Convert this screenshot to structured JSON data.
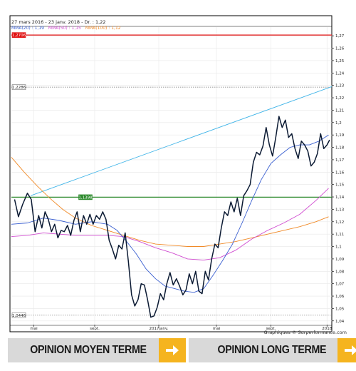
{
  "chart_data": {
    "type": "line",
    "header": "27 mars 2016 - 23 janv. 2018 - Dr. : 1,22",
    "legend": [
      {
        "text": "MMA(20) : 1,19",
        "color": "#3a5fd0"
      },
      {
        "text": "MMA(50) : 1,15",
        "color": "#d04cd0"
      },
      {
        "text": "MMA(100) : 1,12",
        "color": "#f08a28"
      }
    ],
    "ylim": [
      1.037,
      1.277
    ],
    "yticks": [
      1.04,
      1.05,
      1.06,
      1.07,
      1.08,
      1.09,
      1.1,
      1.11,
      1.12,
      1.13,
      1.14,
      1.15,
      1.16,
      1.17,
      1.18,
      1.19,
      1.2,
      1.21,
      1.22,
      1.23,
      1.24,
      1.25,
      1.26,
      1.27
    ],
    "ytick_labels": [
      "1,04",
      "1,05",
      "1,06",
      "1,07",
      "1,08",
      "1,09",
      "1,1",
      "1,11",
      "1,12",
      "1,13",
      "1,14",
      "1,15",
      "1,16",
      "1,17",
      "1,18",
      "1,19",
      "1,2",
      "1,21",
      "1,22",
      "1,23",
      "1,24",
      "1,25",
      "1,26",
      "1,27"
    ],
    "xlim": [
      0,
      100
    ],
    "xticks": [
      {
        "x": 7,
        "label": "mai"
      },
      {
        "x": 26,
        "label": "sept."
      },
      {
        "x": 46,
        "label": "2017janv."
      },
      {
        "x": 64,
        "label": "mai"
      },
      {
        "x": 81,
        "label": "sept."
      },
      {
        "x": 98.5,
        "label": "2018"
      }
    ],
    "hlines": [
      {
        "value": 1.2706,
        "label": "1,2706",
        "color": "#e01010",
        "style": "solid"
      },
      {
        "value": 1.2286,
        "label": "1,2286",
        "color": "#777777",
        "style": "dotted"
      },
      {
        "value": 1.1398,
        "label": "1,1398",
        "color": "#2e8b2e",
        "style": "solid",
        "label_box": "green"
      },
      {
        "value": 1.0446,
        "label": "1,0446",
        "color": "#777777",
        "style": "dotted"
      }
    ],
    "trendline": {
      "color": "#3fb4e8",
      "from": [
        6,
        1.141
      ],
      "to": [
        100,
        1.229
      ]
    },
    "series": [
      {
        "key": "price",
        "color": "#0b1a33",
        "x": [
          1,
          2.2,
          3.5,
          5,
          6.2,
          7.4,
          8.5,
          9.5,
          10.5,
          11.5,
          12.5,
          13.5,
          14.5,
          15.5,
          16.5,
          17.5,
          18.5,
          19.5,
          20.5,
          21.5,
          22.5,
          23.5,
          24.5,
          25.5,
          26.5,
          27.5,
          28.5,
          29.5,
          30.5,
          31.5,
          32.5,
          33.5,
          34.5,
          35.5,
          36.5,
          37.5,
          38.5,
          39.5,
          40.5,
          41.5,
          42.5,
          43.5,
          44.5,
          45.5,
          46.5,
          47.5,
          48.5,
          49.5,
          50.5,
          51.5,
          52.5,
          53.5,
          54.5,
          55.5,
          56.5,
          57.5,
          58.5,
          59.5,
          60.5,
          61.5,
          62.5,
          63.5,
          64.5,
          65.5,
          66.5,
          67.5,
          68.5,
          69.5,
          70.5,
          71.5,
          72.5,
          73.5,
          74.5,
          75.5,
          76.5,
          77.5,
          78.5,
          79.5,
          80.5,
          81.5,
          82.5,
          83.5,
          84.5,
          85.5,
          86.5,
          87.5,
          88.5,
          89.5,
          90.5,
          91.5,
          92.5,
          93.5,
          94.5,
          95.5,
          96.5,
          97.5,
          98.5,
          99.3
        ],
        "y": [
          1.138,
          1.124,
          1.134,
          1.143,
          1.138,
          1.112,
          1.125,
          1.115,
          1.128,
          1.122,
          1.112,
          1.118,
          1.107,
          1.113,
          1.112,
          1.117,
          1.109,
          1.121,
          1.128,
          1.112,
          1.125,
          1.118,
          1.126,
          1.118,
          1.125,
          1.122,
          1.128,
          1.122,
          1.105,
          1.098,
          1.09,
          1.101,
          1.098,
          1.111,
          1.088,
          1.061,
          1.052,
          1.057,
          1.07,
          1.069,
          1.057,
          1.043,
          1.044,
          1.051,
          1.062,
          1.057,
          1.07,
          1.079,
          1.069,
          1.074,
          1.068,
          1.061,
          1.065,
          1.078,
          1.07,
          1.08,
          1.064,
          1.062,
          1.08,
          1.073,
          1.09,
          1.102,
          1.099,
          1.115,
          1.128,
          1.125,
          1.136,
          1.128,
          1.139,
          1.125,
          1.141,
          1.145,
          1.15,
          1.168,
          1.176,
          1.174,
          1.181,
          1.196,
          1.182,
          1.173,
          1.188,
          1.205,
          1.196,
          1.202,
          1.188,
          1.191,
          1.179,
          1.171,
          1.185,
          1.182,
          1.177,
          1.165,
          1.168,
          1.175,
          1.191,
          1.179,
          1.182,
          1.186
        ]
      },
      {
        "key": "mma20",
        "color": "#3a5fd0",
        "x": [
          0,
          5,
          10,
          15,
          20,
          25,
          30,
          33,
          36,
          39,
          42,
          45,
          48,
          51,
          54,
          57,
          60,
          63,
          66,
          69,
          72,
          75,
          78,
          81,
          84,
          87,
          90,
          93,
          96,
          99
        ],
        "y": [
          1.118,
          1.119,
          1.123,
          1.121,
          1.118,
          1.12,
          1.118,
          1.113,
          1.104,
          1.094,
          1.082,
          1.074,
          1.068,
          1.066,
          1.064,
          1.063,
          1.066,
          1.077,
          1.089,
          1.102,
          1.119,
          1.137,
          1.154,
          1.167,
          1.174,
          1.18,
          1.182,
          1.182,
          1.185,
          1.19
        ]
      },
      {
        "key": "mma50",
        "color": "#d04cd0",
        "x": [
          0,
          5,
          10,
          15,
          20,
          25,
          30,
          35,
          40,
          45,
          50,
          55,
          60,
          65,
          70,
          75,
          80,
          85,
          90,
          95,
          99
        ],
        "y": [
          1.108,
          1.109,
          1.111,
          1.11,
          1.109,
          1.109,
          1.109,
          1.108,
          1.104,
          1.099,
          1.095,
          1.09,
          1.089,
          1.091,
          1.097,
          1.106,
          1.113,
          1.119,
          1.126,
          1.137,
          1.147
        ]
      },
      {
        "key": "mma100",
        "color": "#f08a28",
        "x": [
          0,
          4,
          8,
          12,
          16,
          20,
          25,
          30,
          35,
          40,
          45,
          50,
          55,
          60,
          65,
          70,
          75,
          80,
          85,
          90,
          95,
          99
        ],
        "y": [
          1.172,
          1.16,
          1.149,
          1.139,
          1.13,
          1.123,
          1.117,
          1.113,
          1.109,
          1.105,
          1.102,
          1.101,
          1.1,
          1.1,
          1.102,
          1.104,
          1.107,
          1.11,
          1.113,
          1.116,
          1.12,
          1.124
        ]
      }
    ]
  },
  "credit": "Graphiques © Surperformance.com",
  "opinion": {
    "medium_label": "OPINION MOYEN TERME",
    "long_label": "OPINION LONG TERME"
  },
  "colors": {
    "accent": "#f5b41f",
    "button_bg": "#d9d9d9"
  },
  "icons": {
    "arrow": "arrow-right-icon"
  }
}
